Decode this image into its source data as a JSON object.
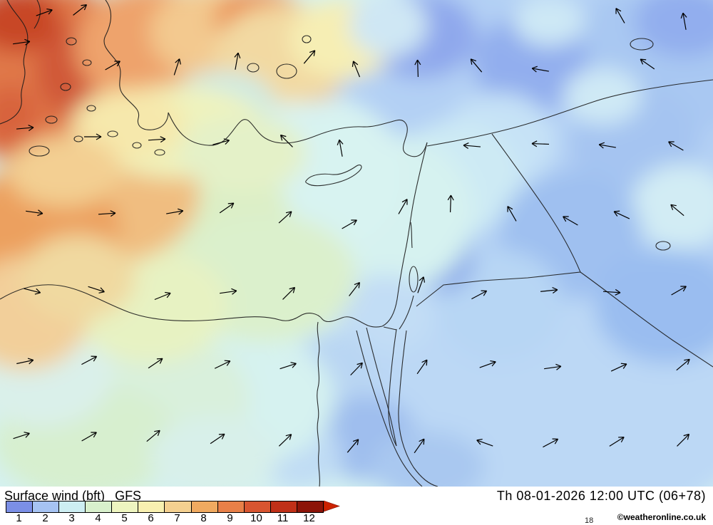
{
  "map": {
    "base_color": "#d5f1f1",
    "coast_color": "#1a1a1a",
    "wind_arrow_color": "#000000",
    "regions": [
      [
        820,
        300,
        320,
        330,
        "#b3d0f4"
      ],
      [
        650,
        120,
        180,
        160,
        "#b3d0f4"
      ],
      [
        780,
        550,
        300,
        200,
        "#bcd8f5"
      ],
      [
        940,
        80,
        140,
        110,
        "#a9c8f2"
      ],
      [
        590,
        50,
        80,
        60,
        "#8fa8ec"
      ],
      [
        745,
        90,
        80,
        70,
        "#92aeee"
      ],
      [
        960,
        30,
        70,
        50,
        "#92aeee"
      ],
      [
        890,
        200,
        90,
        80,
        "#a5c4f1"
      ],
      [
        700,
        200,
        80,
        70,
        "#c6e2f6"
      ],
      [
        640,
        250,
        90,
        80,
        "#cdeaf4"
      ],
      [
        955,
        290,
        70,
        60,
        "#d2ecf4"
      ],
      [
        800,
        330,
        100,
        90,
        "#9fc0f0"
      ],
      [
        935,
        430,
        100,
        80,
        "#9abdf0"
      ],
      [
        700,
        430,
        90,
        80,
        "#b7d6f4"
      ],
      [
        620,
        365,
        45,
        45,
        "#8caae9"
      ],
      [
        545,
        300,
        120,
        110,
        "#d6f2f0"
      ],
      [
        430,
        250,
        140,
        120,
        "#d8f3f1"
      ],
      [
        540,
        440,
        70,
        55,
        "#c2ddf5"
      ],
      [
        470,
        520,
        60,
        55,
        "#b9d6f3"
      ],
      [
        515,
        615,
        70,
        60,
        "#9fbeee"
      ],
      [
        600,
        655,
        80,
        50,
        "#a9c8f0"
      ],
      [
        420,
        640,
        60,
        45,
        "#c0dcf4"
      ],
      [
        350,
        560,
        120,
        90,
        "#d6f2f0"
      ],
      [
        240,
        560,
        110,
        90,
        "#d9f0dc"
      ],
      [
        120,
        620,
        130,
        80,
        "#d7efcf"
      ],
      [
        60,
        520,
        100,
        80,
        "#daf0ea"
      ],
      [
        300,
        640,
        90,
        55,
        "#d8f0ea"
      ],
      [
        280,
        320,
        130,
        110,
        "#dcefc6"
      ],
      [
        370,
        390,
        130,
        90,
        "#dbf0cc"
      ],
      [
        210,
        430,
        110,
        80,
        "#e7f2c2"
      ],
      [
        150,
        270,
        130,
        100,
        "#f0bd80"
      ],
      [
        60,
        340,
        110,
        120,
        "#eca05f"
      ],
      [
        35,
        440,
        90,
        80,
        "#f2cf9a"
      ],
      [
        110,
        390,
        80,
        60,
        "#f0d9a0"
      ],
      [
        70,
        110,
        140,
        130,
        "#e0784a"
      ],
      [
        135,
        100,
        85,
        75,
        "#d05838"
      ],
      [
        25,
        28,
        60,
        45,
        "#c84628"
      ],
      [
        15,
        165,
        40,
        45,
        "#d8643c"
      ],
      [
        215,
        65,
        110,
        85,
        "#eea36c"
      ],
      [
        300,
        45,
        90,
        65,
        "#f3c98f"
      ],
      [
        365,
        30,
        65,
        45,
        "#ea8c50"
      ],
      [
        435,
        100,
        48,
        42,
        "#dd6b3e"
      ],
      [
        400,
        75,
        100,
        70,
        "#f2d9a2"
      ],
      [
        480,
        55,
        75,
        55,
        "#f6eeb4"
      ],
      [
        545,
        35,
        55,
        45,
        "#cfe7f4"
      ],
      [
        310,
        145,
        75,
        45,
        "#cdeae6"
      ],
      [
        250,
        185,
        130,
        65,
        "#eff3bd"
      ],
      [
        180,
        175,
        80,
        50,
        "#f6e8ac"
      ],
      [
        340,
        215,
        90,
        55,
        "#e4f1c8"
      ],
      [
        90,
        240,
        80,
        50,
        "#f3cf92"
      ],
      [
        845,
        135,
        55,
        40,
        "#cfe9f5"
      ],
      [
        770,
        30,
        50,
        35,
        "#cde8f5"
      ]
    ],
    "arrows": [
      [
        62,
        18,
        -20
      ],
      [
        112,
        14,
        -38
      ],
      [
        870,
        22,
        -120
      ],
      [
        960,
        30,
        -100
      ],
      [
        30,
        60,
        -8
      ],
      [
        158,
        92,
        -30
      ],
      [
        248,
        94,
        -72
      ],
      [
        332,
        86,
        -80
      ],
      [
        434,
        80,
        -50
      ],
      [
        500,
        97,
        -112
      ],
      [
        586,
        96,
        -92
      ],
      [
        668,
        92,
        -130
      ],
      [
        758,
        98,
        190
      ],
      [
        908,
        90,
        -145
      ],
      [
        35,
        180,
        -5
      ],
      [
        130,
        192,
        0
      ],
      [
        220,
        196,
        -4
      ],
      [
        310,
        200,
        -15
      ],
      [
        402,
        198,
        -135
      ],
      [
        478,
        208,
        -100
      ],
      [
        662,
        205,
        185
      ],
      [
        758,
        202,
        182
      ],
      [
        852,
        205,
        -170
      ],
      [
        948,
        205,
        -150
      ],
      [
        48,
        298,
        8
      ],
      [
        150,
        300,
        -4
      ],
      [
        245,
        298,
        -10
      ],
      [
        318,
        292,
        -35
      ],
      [
        400,
        305,
        -42
      ],
      [
        490,
        315,
        -30
      ],
      [
        565,
        290,
        -60
      ],
      [
        632,
        286,
        -88
      ],
      [
        718,
        300,
        -120
      ],
      [
        800,
        310,
        -150
      ],
      [
        872,
        302,
        -155
      ],
      [
        950,
        295,
        -140
      ],
      [
        45,
        408,
        14
      ],
      [
        135,
        406,
        18
      ],
      [
        228,
        416,
        -22
      ],
      [
        320,
        410,
        -8
      ],
      [
        405,
        412,
        -45
      ],
      [
        497,
        406,
        -52
      ],
      [
        590,
        400,
        -70
      ],
      [
        672,
        414,
        -28
      ],
      [
        770,
        408,
        -6
      ],
      [
        858,
        410,
        4
      ],
      [
        952,
        408,
        -30
      ],
      [
        35,
        508,
        -12
      ],
      [
        125,
        506,
        -28
      ],
      [
        218,
        510,
        -34
      ],
      [
        312,
        512,
        -26
      ],
      [
        404,
        514,
        -18
      ],
      [
        500,
        518,
        -46
      ],
      [
        592,
        515,
        -55
      ],
      [
        684,
        512,
        -20
      ],
      [
        775,
        516,
        -8
      ],
      [
        868,
        516,
        -25
      ],
      [
        958,
        512,
        -40
      ],
      [
        30,
        612,
        -18
      ],
      [
        125,
        613,
        -30
      ],
      [
        215,
        612,
        -40
      ],
      [
        305,
        616,
        -34
      ],
      [
        400,
        618,
        -44
      ],
      [
        495,
        626,
        -50
      ],
      [
        588,
        626,
        -55
      ],
      [
        680,
        622,
        -160
      ],
      [
        772,
        622,
        -28
      ],
      [
        865,
        620,
        -32
      ],
      [
        958,
        618,
        -45
      ]
    ]
  },
  "footer": {
    "title": "Surface wind (bft)",
    "model": "GFS",
    "timestamp": "Th 08-01-2026 12:00 UTC (06+78)",
    "copyright": "©weatheronline.co.uk",
    "partial_text": "18"
  },
  "legend": {
    "unit": "bft",
    "values": [
      "1",
      "2",
      "3",
      "4",
      "5",
      "6",
      "7",
      "8",
      "9",
      "10",
      "11",
      "12"
    ],
    "colors": [
      "#7b8fe6",
      "#a6c3f2",
      "#cdeef2",
      "#d8f0cc",
      "#eef5c0",
      "#f8f0b0",
      "#f4d090",
      "#f0aa60",
      "#e88048",
      "#d85530",
      "#c03018",
      "#8c1408"
    ],
    "arrow_color": "#cc2200"
  }
}
